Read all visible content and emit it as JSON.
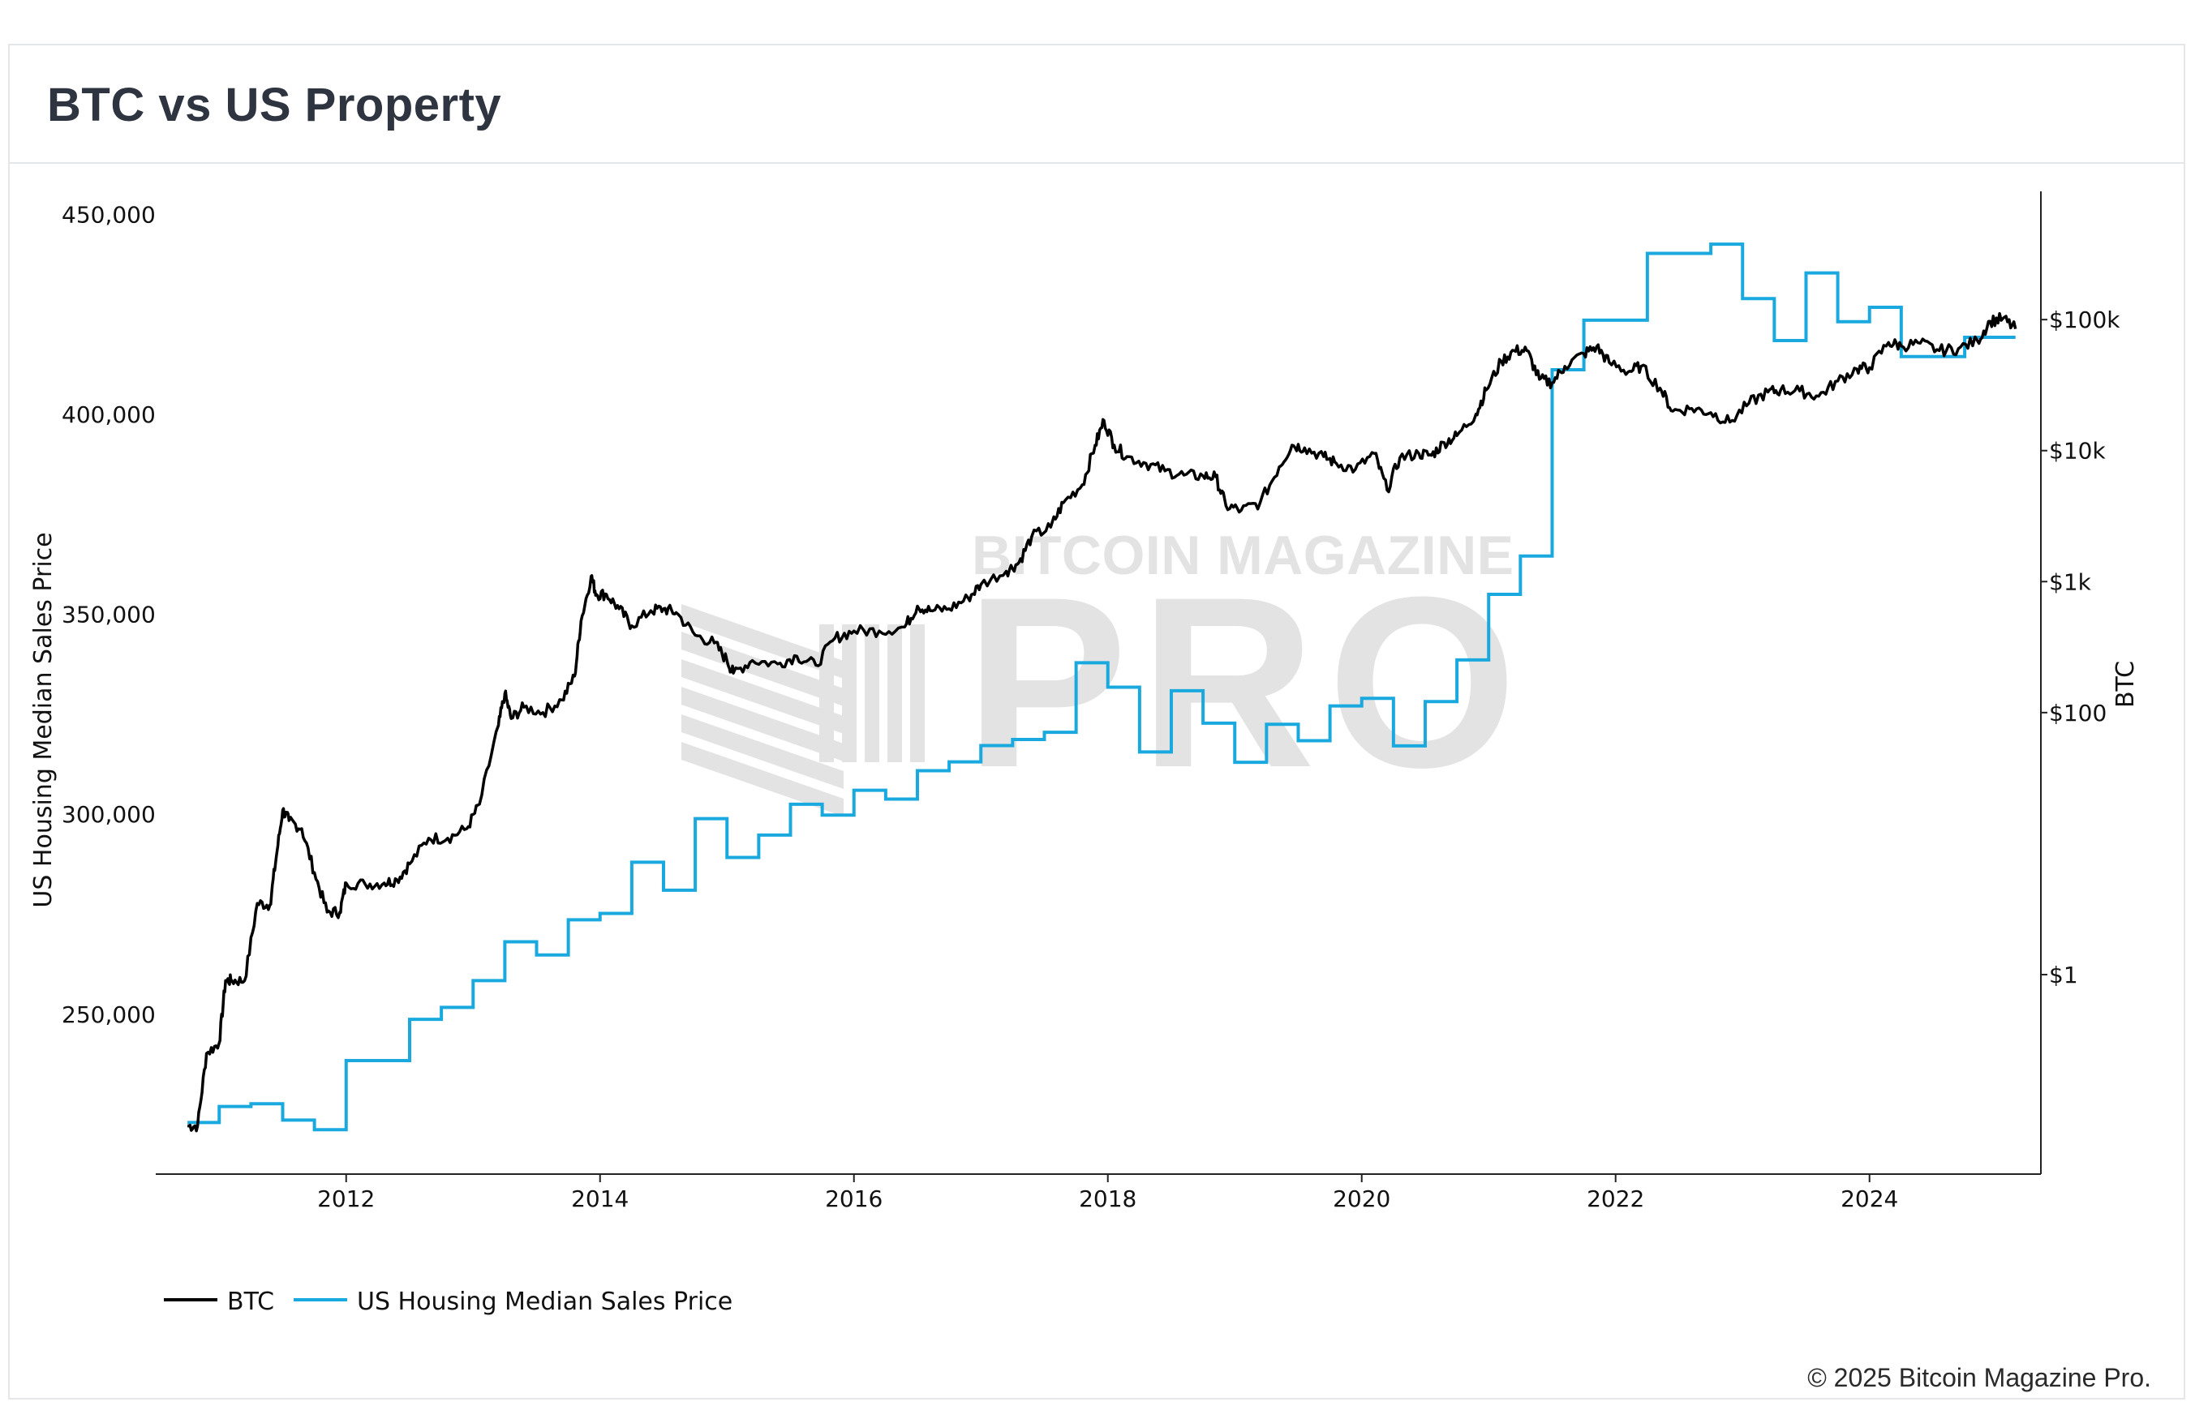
{
  "title": "BTC vs US Property",
  "copyright": "© 2025 Bitcoin Magazine Pro.",
  "watermark": {
    "line1": "BITCOIN MAGAZINE",
    "line2": "PRO"
  },
  "colors": {
    "btc": "#000000",
    "housing": "#1aa9de",
    "axis": "#222222",
    "watermark": "#e3e3e3"
  },
  "chart_data": {
    "type": "line",
    "title": "BTC vs US Property",
    "xlabel": "",
    "y_left_label": "US Housing Median Sales Price",
    "y_right_label": "BTC",
    "y_left_ticks": [
      250000,
      300000,
      350000,
      400000,
      450000
    ],
    "y_left_tick_labels": [
      "250,000",
      "300,000",
      "350,000",
      "400,000",
      "450,000"
    ],
    "y_left_range": [
      210000,
      455000
    ],
    "y_right_scale": "log",
    "y_right_ticks": [
      1,
      100,
      1000,
      10000,
      100000
    ],
    "y_right_tick_labels": [
      "$1",
      "$100",
      "$1k",
      "$10k",
      "$100k"
    ],
    "y_right_range": [
      0.03,
      900000
    ],
    "x_range": [
      2010.5,
      2025.35
    ],
    "x_ticks": [
      2012,
      2014,
      2016,
      2018,
      2020,
      2022,
      2024
    ],
    "x_tick_labels": [
      "2012",
      "2014",
      "2016",
      "2018",
      "2020",
      "2022",
      "2024"
    ],
    "legend_position": "bottom-left",
    "series": [
      {
        "name": "BTC",
        "axis": "right",
        "points": [
          [
            2010.75,
            0.07
          ],
          [
            2010.83,
            0.07
          ],
          [
            2010.9,
            0.25
          ],
          [
            2011.0,
            0.3
          ],
          [
            2011.05,
            0.9
          ],
          [
            2011.1,
            0.9
          ],
          [
            2011.2,
            0.9
          ],
          [
            2011.3,
            3.5
          ],
          [
            2011.4,
            3.4
          ],
          [
            2011.45,
            8
          ],
          [
            2011.5,
            18
          ],
          [
            2011.55,
            15
          ],
          [
            2011.65,
            13
          ],
          [
            2011.75,
            6
          ],
          [
            2011.85,
            3
          ],
          [
            2011.95,
            3
          ],
          [
            2012.0,
            5
          ],
          [
            2012.15,
            4.9
          ],
          [
            2012.3,
            5
          ],
          [
            2012.4,
            5.3
          ],
          [
            2012.5,
            7
          ],
          [
            2012.65,
            11
          ],
          [
            2012.8,
            11
          ],
          [
            2012.95,
            13
          ],
          [
            2013.05,
            20
          ],
          [
            2013.2,
            80
          ],
          [
            2013.25,
            140
          ],
          [
            2013.3,
            90
          ],
          [
            2013.4,
            110
          ],
          [
            2013.55,
            100
          ],
          [
            2013.7,
            125
          ],
          [
            2013.8,
            190
          ],
          [
            2013.85,
            500
          ],
          [
            2013.93,
            1100
          ],
          [
            2013.97,
            800
          ],
          [
            2014.05,
            800
          ],
          [
            2014.15,
            620
          ],
          [
            2014.25,
            460
          ],
          [
            2014.4,
            600
          ],
          [
            2014.5,
            620
          ],
          [
            2014.6,
            580
          ],
          [
            2014.75,
            390
          ],
          [
            2014.9,
            340
          ],
          [
            2015.0,
            250
          ],
          [
            2015.05,
            200
          ],
          [
            2015.2,
            250
          ],
          [
            2015.4,
            235
          ],
          [
            2015.55,
            270
          ],
          [
            2015.7,
            230
          ],
          [
            2015.85,
            370
          ],
          [
            2016.0,
            420
          ],
          [
            2016.2,
            420
          ],
          [
            2016.4,
            450
          ],
          [
            2016.5,
            650
          ],
          [
            2016.6,
            600
          ],
          [
            2016.75,
            620
          ],
          [
            2016.9,
            750
          ],
          [
            2017.0,
            950
          ],
          [
            2017.2,
            1200
          ],
          [
            2017.3,
            1400
          ],
          [
            2017.4,
            2200
          ],
          [
            2017.55,
            2600
          ],
          [
            2017.65,
            4000
          ],
          [
            2017.8,
            5500
          ],
          [
            2017.9,
            11000
          ],
          [
            2017.97,
            17000
          ],
          [
            2018.05,
            11000
          ],
          [
            2018.15,
            9000
          ],
          [
            2018.3,
            8000
          ],
          [
            2018.45,
            7000
          ],
          [
            2018.6,
            6500
          ],
          [
            2018.75,
            6400
          ],
          [
            2018.85,
            6300
          ],
          [
            2018.93,
            3800
          ],
          [
            2019.05,
            3500
          ],
          [
            2019.2,
            4000
          ],
          [
            2019.35,
            7500
          ],
          [
            2019.45,
            11000
          ],
          [
            2019.55,
            10500
          ],
          [
            2019.7,
            9000
          ],
          [
            2019.8,
            8000
          ],
          [
            2019.95,
            7200
          ],
          [
            2020.1,
            9500
          ],
          [
            2020.2,
            5000
          ],
          [
            2020.3,
            8800
          ],
          [
            2020.45,
            9500
          ],
          [
            2020.55,
            9200
          ],
          [
            2020.65,
            11500
          ],
          [
            2020.75,
            13000
          ],
          [
            2020.9,
            19000
          ],
          [
            2020.98,
            29000
          ],
          [
            2021.1,
            48000
          ],
          [
            2021.2,
            58000
          ],
          [
            2021.3,
            58000
          ],
          [
            2021.4,
            35000
          ],
          [
            2021.5,
            33000
          ],
          [
            2021.6,
            44000
          ],
          [
            2021.75,
            55000
          ],
          [
            2021.85,
            62000
          ],
          [
            2021.95,
            47000
          ],
          [
            2022.1,
            40000
          ],
          [
            2022.2,
            44000
          ],
          [
            2022.35,
            30000
          ],
          [
            2022.45,
            20000
          ],
          [
            2022.6,
            21000
          ],
          [
            2022.75,
            19500
          ],
          [
            2022.9,
            16500
          ],
          [
            2023.05,
            23000
          ],
          [
            2023.2,
            28000
          ],
          [
            2023.3,
            29000
          ],
          [
            2023.45,
            28500
          ],
          [
            2023.6,
            26000
          ],
          [
            2023.75,
            34000
          ],
          [
            2023.9,
            42000
          ],
          [
            2024.0,
            43000
          ],
          [
            2024.15,
            67000
          ],
          [
            2024.25,
            63000
          ],
          [
            2024.4,
            66000
          ],
          [
            2024.55,
            58000
          ],
          [
            2024.7,
            60000
          ],
          [
            2024.85,
            69000
          ],
          [
            2024.95,
            97000
          ],
          [
            2025.05,
            102000
          ],
          [
            2025.15,
            85000
          ]
        ]
      },
      {
        "name": "US Housing Median Sales Price",
        "axis": "left",
        "steps": [
          [
            2010.75,
            222900
          ],
          [
            2011.0,
            226900
          ],
          [
            2011.25,
            227600
          ],
          [
            2011.5,
            223500
          ],
          [
            2011.75,
            221100
          ],
          [
            2012.0,
            238400
          ],
          [
            2012.5,
            248700
          ],
          [
            2012.75,
            251700
          ],
          [
            2013.0,
            258400
          ],
          [
            2013.25,
            268100
          ],
          [
            2013.5,
            264800
          ],
          [
            2013.75,
            273600
          ],
          [
            2014.0,
            275200
          ],
          [
            2014.25,
            288000
          ],
          [
            2014.5,
            281000
          ],
          [
            2014.75,
            298900
          ],
          [
            2015.0,
            289200
          ],
          [
            2015.25,
            294800
          ],
          [
            2015.5,
            302500
          ],
          [
            2015.75,
            299800
          ],
          [
            2016.0,
            306000
          ],
          [
            2016.25,
            303800
          ],
          [
            2016.5,
            310900
          ],
          [
            2016.75,
            313100
          ],
          [
            2017.0,
            317200
          ],
          [
            2017.25,
            318700
          ],
          [
            2017.5,
            320500
          ],
          [
            2017.75,
            337900
          ],
          [
            2018.0,
            331800
          ],
          [
            2018.25,
            315600
          ],
          [
            2018.5,
            330900
          ],
          [
            2018.75,
            322800
          ],
          [
            2019.0,
            313000
          ],
          [
            2019.25,
            322500
          ],
          [
            2019.5,
            318400
          ],
          [
            2019.75,
            327100
          ],
          [
            2020.0,
            329000
          ],
          [
            2020.25,
            317100
          ],
          [
            2020.5,
            328200
          ],
          [
            2020.75,
            338600
          ],
          [
            2021.0,
            355000
          ],
          [
            2021.25,
            364600
          ],
          [
            2021.5,
            411200
          ],
          [
            2021.75,
            423600
          ],
          [
            2022.0,
            423600
          ],
          [
            2022.25,
            440300
          ],
          [
            2022.75,
            442600
          ],
          [
            2023.0,
            429000
          ],
          [
            2023.25,
            418500
          ],
          [
            2023.5,
            435400
          ],
          [
            2023.75,
            423200
          ],
          [
            2024.0,
            426800
          ],
          [
            2024.25,
            414500
          ],
          [
            2024.75,
            419300
          ],
          [
            2025.15,
            419300
          ]
        ]
      }
    ]
  }
}
